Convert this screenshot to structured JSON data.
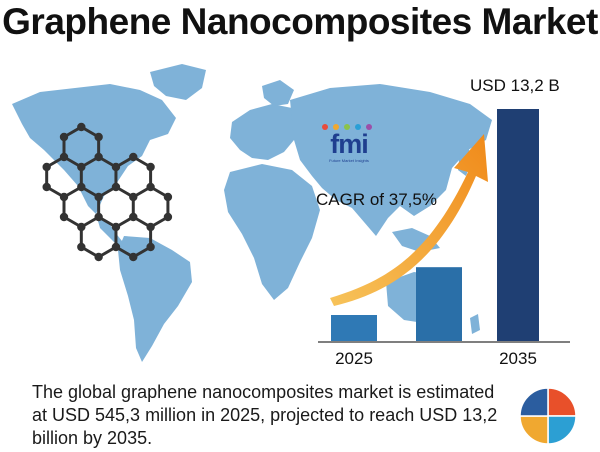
{
  "title": "Graphene Nanocomposites Market",
  "logo": {
    "word": "fmi",
    "subtitle": "Future Market Insights",
    "dot_colors": [
      "#e84b3c",
      "#f0a830",
      "#8bc34a",
      "#2a9fd6",
      "#9c4fa8"
    ]
  },
  "chart_data": {
    "type": "bar",
    "categories": [
      "2025",
      "",
      "2035"
    ],
    "values": [
      0.5453,
      4.2,
      13.2
    ],
    "unit": "USD B",
    "value_label": "USD 13,2 B",
    "annotation": "CAGR of 37,5%",
    "bar_colors": [
      "#2f79b5",
      "#2a6fa8",
      "#1f3f73"
    ]
  },
  "description": "The global graphene nanocomposites market is estimated at USD 545,3 million in 2025, projected to reach USD 13,2 billion by 2035.",
  "colors": {
    "map": "#7fb2d8",
    "hex_stroke": "#333333",
    "arrow": "#f29b1f",
    "pie": [
      "#e8502a",
      "#2c9fd3",
      "#f0a830",
      "#2b5d9f"
    ]
  }
}
